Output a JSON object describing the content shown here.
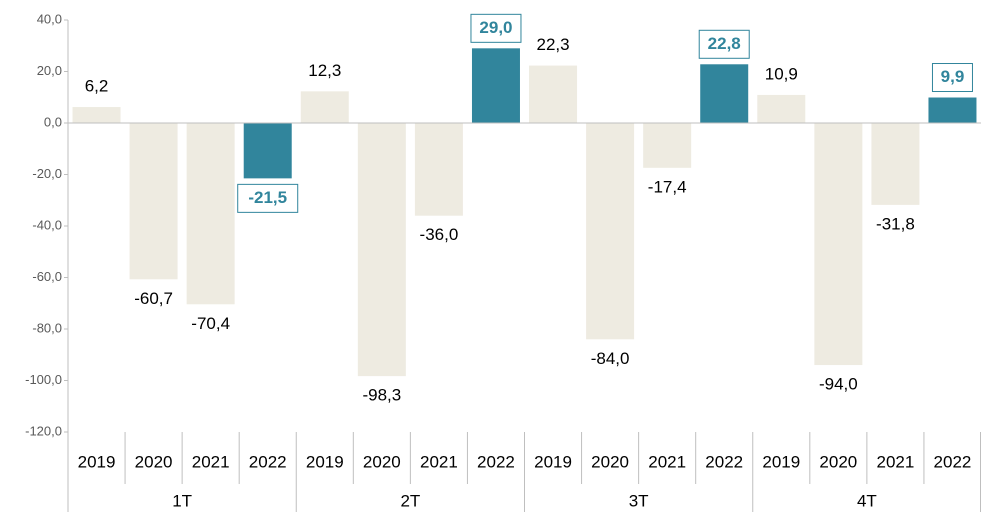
{
  "chart_data": {
    "type": "bar",
    "categories": [
      "2019",
      "2020",
      "2021",
      "2022",
      "2019",
      "2020",
      "2021",
      "2022",
      "2019",
      "2020",
      "2021",
      "2022",
      "2019",
      "2020",
      "2021",
      "2022"
    ],
    "groups": [
      "1T",
      "2T",
      "3T",
      "4T"
    ],
    "values": [
      6.2,
      -60.7,
      -70.4,
      -21.5,
      12.3,
      -98.3,
      -36.0,
      29.0,
      22.3,
      -84.0,
      -17.4,
      22.8,
      10.9,
      -94.0,
      -31.8,
      9.9
    ],
    "value_labels": [
      "6,2",
      "-60,7",
      "-70,4",
      "-21,5",
      "12,3",
      "-98,3",
      "-36,0",
      "29,0",
      "22,3",
      "-84,0",
      "-17,4",
      "22,8",
      "10,9",
      "-94,0",
      "-31,8",
      "9,9"
    ],
    "colors": [
      "#eeebe1",
      "#eeebe1",
      "#eeebe1",
      "#31859c",
      "#eeebe1",
      "#eeebe1",
      "#eeebe1",
      "#31859c",
      "#eeebe1",
      "#eeebe1",
      "#eeebe1",
      "#31859c",
      "#eeebe1",
      "#eeebe1",
      "#eeebe1",
      "#31859c"
    ],
    "highlight_color": "#31859c",
    "ylim": [
      -120,
      40
    ],
    "yticks": [
      {
        "value": 40,
        "label": "40,0"
      },
      {
        "value": 20,
        "label": "20,0"
      },
      {
        "value": 0,
        "label": "0,0"
      },
      {
        "value": -20,
        "label": "-20,0"
      },
      {
        "value": -40,
        "label": "-40,0"
      },
      {
        "value": -60,
        "label": "-60,0"
      },
      {
        "value": -80,
        "label": "-80,0"
      },
      {
        "value": -100,
        "label": "-100,0"
      },
      {
        "value": -120,
        "label": "-120,0"
      }
    ],
    "grid": false
  }
}
